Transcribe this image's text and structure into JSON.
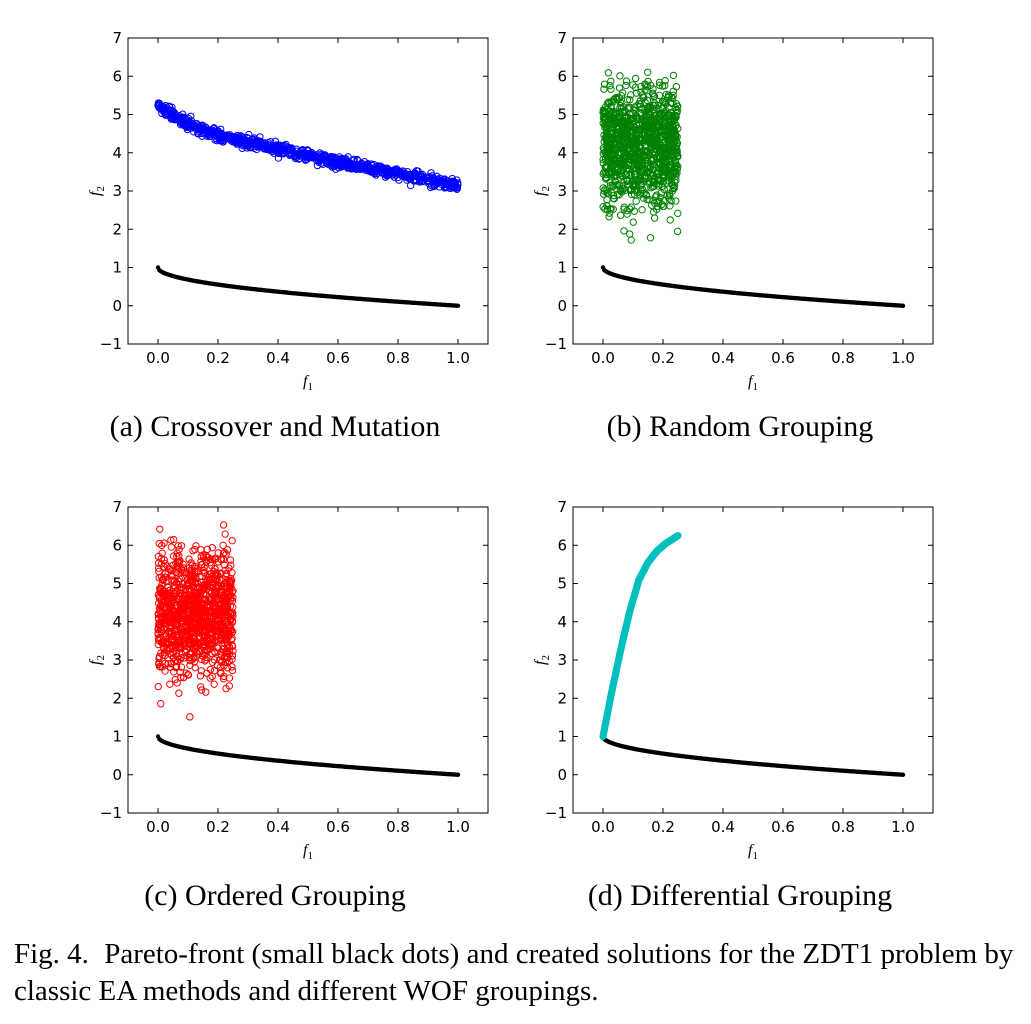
{
  "panels": [
    {
      "id": "a",
      "caption": "(a) Crossover and Mutation",
      "solution_color": "#0000ff",
      "solution_pattern": "band"
    },
    {
      "id": "b",
      "caption": "(b) Random Grouping",
      "solution_color": "#008000",
      "solution_pattern": "cloud"
    },
    {
      "id": "c",
      "caption": "(c) Ordered Grouping",
      "solution_color": "#ff0000",
      "solution_pattern": "cloud"
    },
    {
      "id": "d",
      "caption": "(d) Differential Grouping",
      "solution_color": "#00bfbf",
      "solution_pattern": "curve"
    }
  ],
  "chart_data": [
    {
      "type": "scatter",
      "title": "(a) Crossover and Mutation",
      "xlabel": "f1",
      "ylabel": "f2",
      "xlim": [
        -0.1,
        1.1
      ],
      "ylim": [
        -1,
        7
      ],
      "xticks": [
        "0.0",
        "0.2",
        "0.4",
        "0.6",
        "0.8",
        "1.0"
      ],
      "yticks": [
        "−1",
        "0",
        "1",
        "2",
        "3",
        "4",
        "5",
        "6",
        "7"
      ],
      "series": [
        {
          "name": "Pareto-front",
          "color": "#000000",
          "marker": "dot",
          "function": "f2 = 1 - sqrt(f1)",
          "x_range": [
            0,
            1
          ]
        },
        {
          "name": "Created solutions",
          "color": "#0000ff",
          "marker": "open-circle",
          "x_range": [
            0,
            1
          ],
          "y_range": [
            3.0,
            5.45
          ],
          "trend": [
            [
              0.0,
              5.25
            ],
            [
              0.1,
              4.75
            ],
            [
              0.2,
              4.45
            ],
            [
              0.4,
              4.1
            ],
            [
              0.6,
              3.75
            ],
            [
              0.8,
              3.45
            ],
            [
              1.0,
              3.15
            ]
          ]
        }
      ]
    },
    {
      "type": "scatter",
      "title": "(b) Random Grouping",
      "xlabel": "f1",
      "ylabel": "f2",
      "xlim": [
        -0.1,
        1.1
      ],
      "ylim": [
        -1,
        7
      ],
      "xticks": [
        "0.0",
        "0.2",
        "0.4",
        "0.6",
        "0.8",
        "1.0"
      ],
      "yticks": [
        "−1",
        "0",
        "1",
        "2",
        "3",
        "4",
        "5",
        "6",
        "7"
      ],
      "series": [
        {
          "name": "Pareto-front",
          "color": "#000000",
          "marker": "dot",
          "function": "f2 = 1 - sqrt(f1)",
          "x_range": [
            0,
            1
          ]
        },
        {
          "name": "Created solutions",
          "color": "#008000",
          "marker": "open-circle",
          "x_range": [
            0.0,
            0.25
          ],
          "y_range": [
            1.7,
            6.2
          ],
          "center": [
            0.12,
            4.2
          ]
        }
      ]
    },
    {
      "type": "scatter",
      "title": "(c) Ordered Grouping",
      "xlabel": "f1",
      "ylabel": "f2",
      "xlim": [
        -0.1,
        1.1
      ],
      "ylim": [
        -1,
        7
      ],
      "xticks": [
        "0.0",
        "0.2",
        "0.4",
        "0.6",
        "0.8",
        "1.0"
      ],
      "yticks": [
        "−1",
        "0",
        "1",
        "2",
        "3",
        "4",
        "5",
        "6",
        "7"
      ],
      "series": [
        {
          "name": "Pareto-front",
          "color": "#000000",
          "marker": "dot",
          "function": "f2 = 1 - sqrt(f1)",
          "x_range": [
            0,
            1
          ]
        },
        {
          "name": "Created solutions",
          "color": "#ff0000",
          "marker": "open-circle",
          "x_range": [
            0.0,
            0.25
          ],
          "y_range": [
            1.2,
            6.6
          ],
          "center": [
            0.12,
            4.2
          ]
        }
      ]
    },
    {
      "type": "scatter",
      "title": "(d) Differential Grouping",
      "xlabel": "f1",
      "ylabel": "f2",
      "xlim": [
        -0.1,
        1.1
      ],
      "ylim": [
        -1,
        7
      ],
      "xticks": [
        "0.0",
        "0.2",
        "0.4",
        "0.6",
        "0.8",
        "1.0"
      ],
      "yticks": [
        "−1",
        "0",
        "1",
        "2",
        "3",
        "4",
        "5",
        "6",
        "7"
      ],
      "series": [
        {
          "name": "Pareto-front",
          "color": "#000000",
          "marker": "dot",
          "function": "f2 = 1 - sqrt(f1)",
          "x_range": [
            0,
            1
          ]
        },
        {
          "name": "Created solutions",
          "color": "#00bfbf",
          "marker": "dot",
          "points": [
            [
              0.0,
              1.0
            ],
            [
              0.03,
              2.2
            ],
            [
              0.06,
              3.3
            ],
            [
              0.09,
              4.3
            ],
            [
              0.12,
              5.1
            ],
            [
              0.15,
              5.55
            ],
            [
              0.18,
              5.85
            ],
            [
              0.21,
              6.05
            ],
            [
              0.25,
              6.25
            ]
          ]
        }
      ]
    }
  ],
  "figure_caption": {
    "label": "Fig. 4.",
    "text": "Pareto-front (small black dots) and created solutions for the ZDT1 problem by classic EA methods and different WOF groupings."
  }
}
